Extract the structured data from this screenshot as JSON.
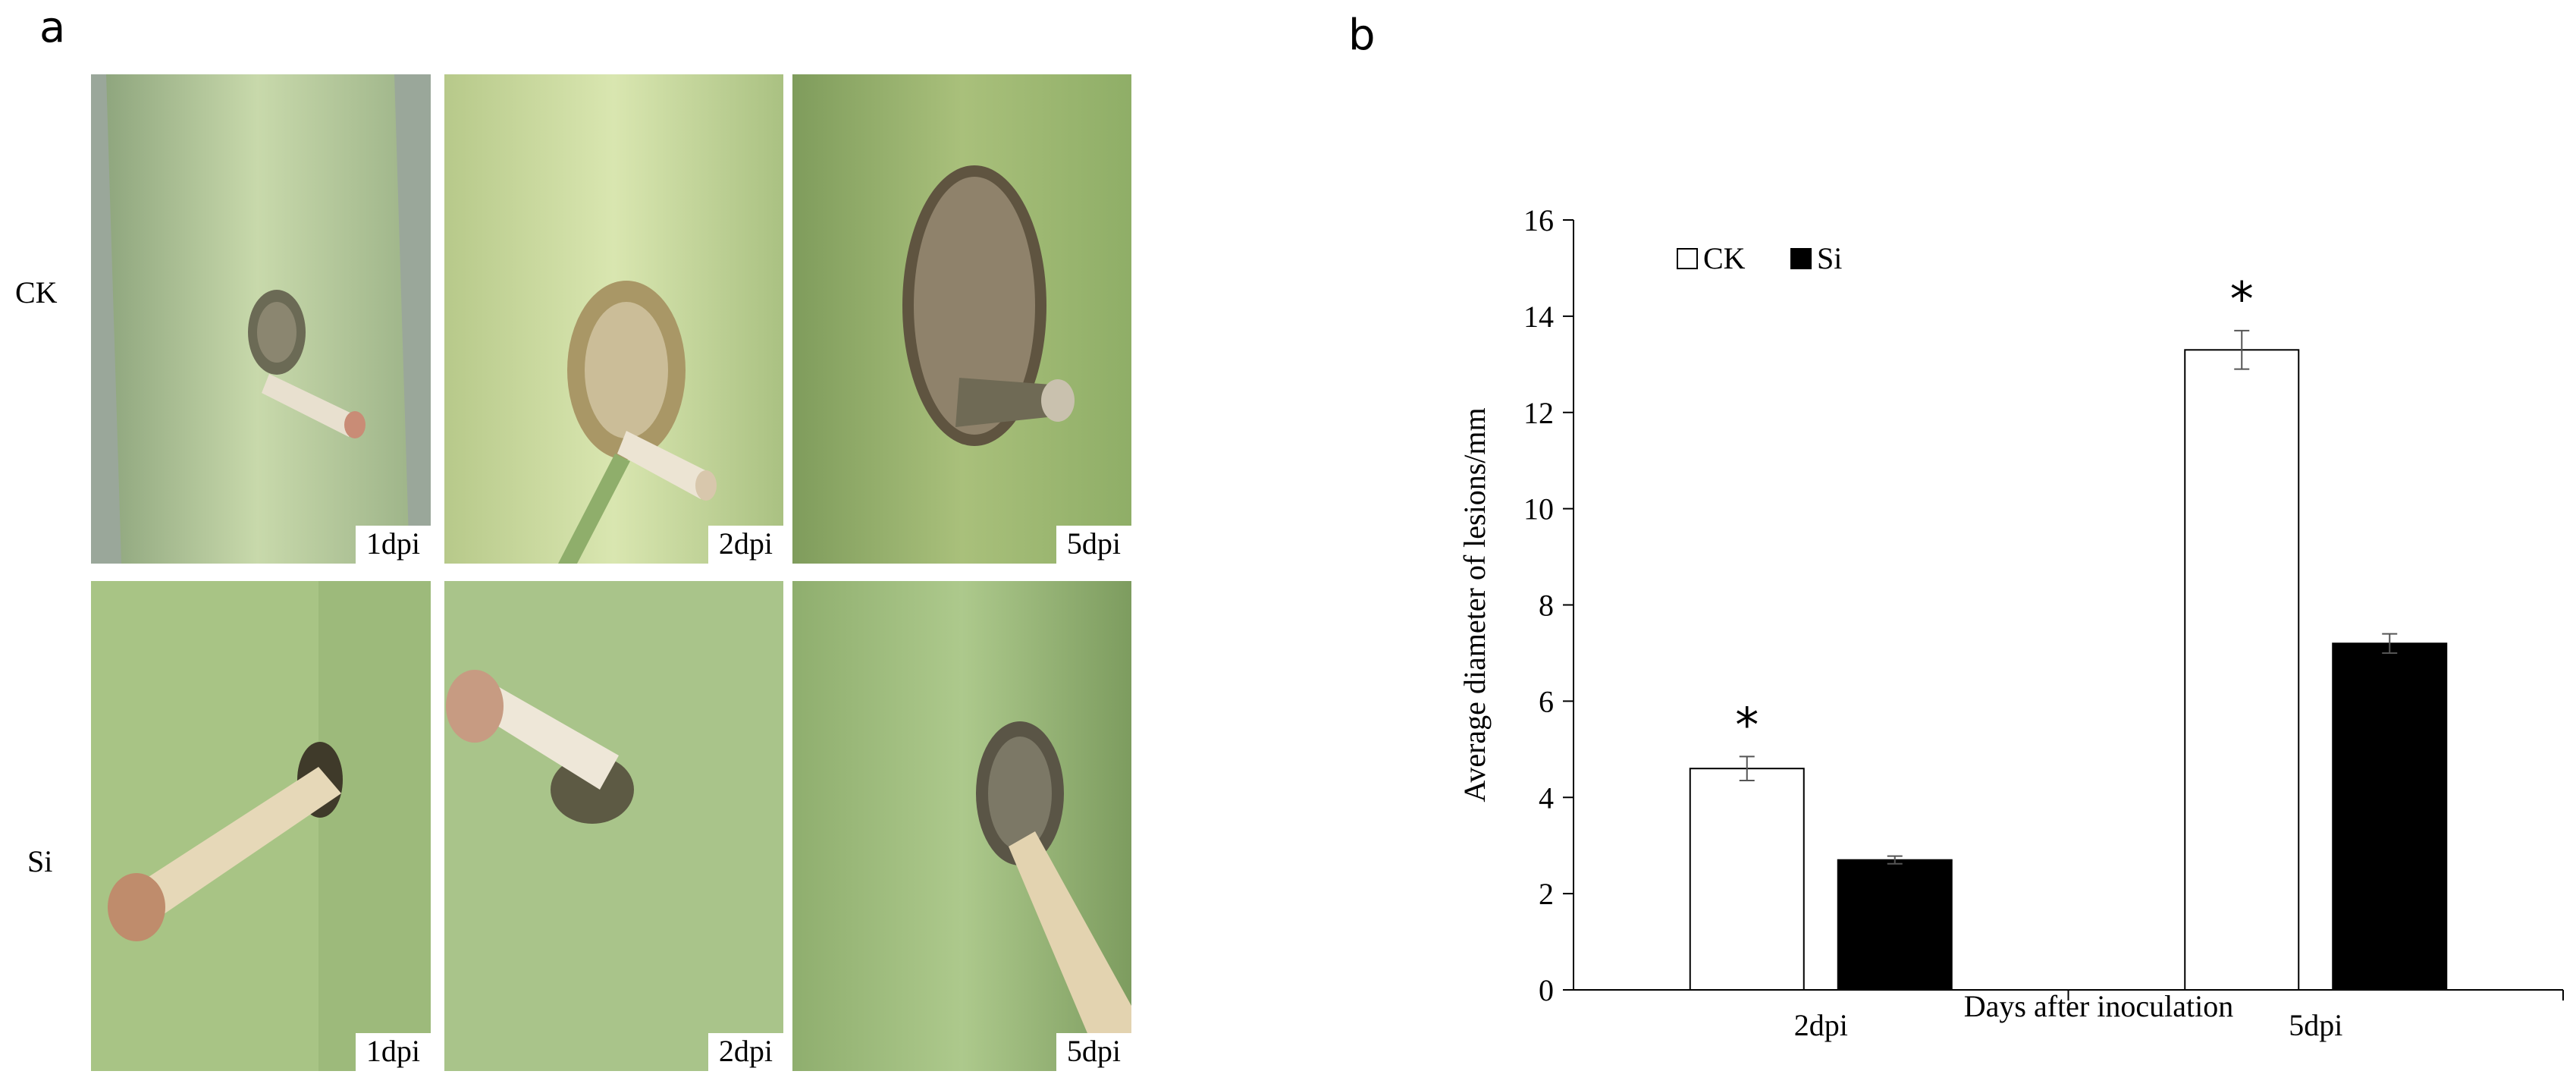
{
  "panel_a": {
    "letter": "a",
    "rows": [
      {
        "label": "CK",
        "panels": [
          {
            "tag": "1dpi"
          },
          {
            "tag": "2dpi"
          },
          {
            "tag": "5dpi"
          }
        ]
      },
      {
        "label": "Si",
        "panels": [
          {
            "tag": "1dpi"
          },
          {
            "tag": "2dpi"
          },
          {
            "tag": "5dpi"
          }
        ]
      }
    ]
  },
  "panel_b": {
    "letter": "b"
  },
  "chart_data": {
    "type": "bar",
    "categories": [
      "2dpi",
      "5dpi"
    ],
    "series": [
      {
        "name": "CK",
        "values": [
          4.6,
          13.3
        ],
        "errors": [
          0.25,
          0.4
        ],
        "color": "#ffffff",
        "significant": [
          true,
          true
        ]
      },
      {
        "name": "Si",
        "values": [
          2.7,
          7.2
        ],
        "errors": [
          0.08,
          0.2
        ],
        "color": "#000000",
        "significant": [
          false,
          false
        ]
      }
    ],
    "significance_marker": "*",
    "xlabel": "Days after inoculation",
    "ylabel": "Average diameter of lesions/mm",
    "ylim": [
      0,
      16
    ],
    "yticks": [
      0,
      2,
      4,
      6,
      8,
      10,
      12,
      14,
      16
    ],
    "grid": false,
    "legend_position": "top-left"
  }
}
